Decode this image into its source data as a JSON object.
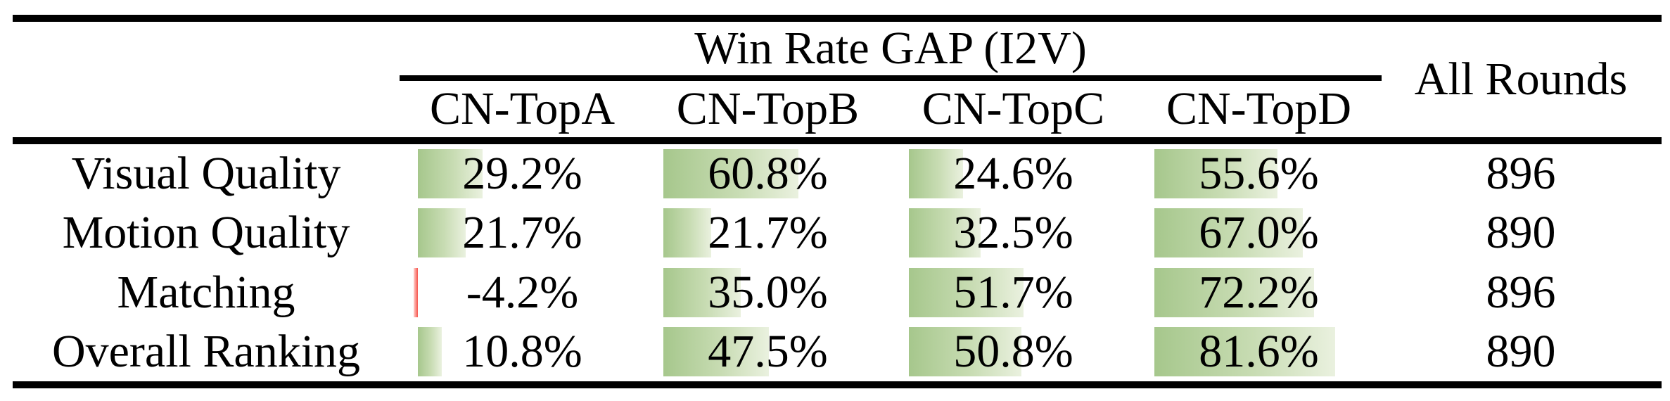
{
  "table": {
    "group_header": "Win Rate GAP (I2V)",
    "all_rounds_header": "All Rounds",
    "columns": [
      "CN-TopA",
      "CN-TopB",
      "CN-TopC",
      "CN-TopD"
    ],
    "rows": [
      {
        "label": "Visual Quality",
        "values": [
          29.2,
          60.8,
          24.6,
          55.6
        ],
        "displays": [
          "29.2%",
          "60.8%",
          "24.6%",
          "55.6%"
        ],
        "all_rounds": "896"
      },
      {
        "label": "Motion Quality",
        "values": [
          21.7,
          21.7,
          32.5,
          67.0
        ],
        "displays": [
          "21.7%",
          "21.7%",
          "32.5%",
          "67.0%"
        ],
        "all_rounds": "890"
      },
      {
        "label": "Matching",
        "values": [
          -4.2,
          35.0,
          51.7,
          72.2
        ],
        "displays": [
          "-4.2%",
          "35.0%",
          "51.7%",
          "72.2%"
        ],
        "all_rounds": "896"
      },
      {
        "label": "Overall Ranking",
        "values": [
          10.8,
          47.5,
          50.8,
          81.6
        ],
        "displays": [
          "10.8%",
          "47.5%",
          "50.8%",
          "81.6%"
        ],
        "all_rounds": "890"
      }
    ],
    "colors": {
      "positive_bar_start": "#a6c78c",
      "positive_bar_end": "#eaf1df",
      "negative_bar": "#f6564e",
      "text": "#000000",
      "rules": "#000000"
    }
  },
  "chart_data": {
    "type": "table",
    "title": "Win Rate GAP (I2V)",
    "categories": [
      "Visual Quality",
      "Motion Quality",
      "Matching",
      "Overall Ranking"
    ],
    "series": [
      {
        "name": "CN-TopA",
        "values": [
          29.2,
          21.7,
          -4.2,
          10.8
        ]
      },
      {
        "name": "CN-TopB",
        "values": [
          60.8,
          21.7,
          35.0,
          47.5
        ]
      },
      {
        "name": "CN-TopC",
        "values": [
          24.6,
          32.5,
          51.7,
          50.8
        ]
      },
      {
        "name": "CN-TopD",
        "values": [
          55.6,
          67.0,
          72.2,
          81.6
        ]
      }
    ],
    "extra_column": {
      "name": "All Rounds",
      "values": [
        896,
        890,
        896,
        890
      ]
    },
    "unit": "%",
    "layout_hints": "in-cell green gradient data bars proportional to value, left-anchored; negative value drawn as thin red bar; no vertical gridlines"
  }
}
